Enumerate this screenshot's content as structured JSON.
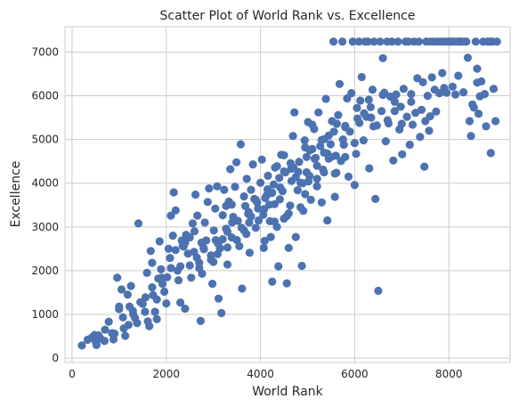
{
  "chart_data": {
    "type": "scatter",
    "title": "Scatter Plot of World Rank vs. Excellence",
    "xlabel": "World Rank",
    "ylabel": "Excellence",
    "xlim": [
      -150,
      9300
    ],
    "ylim": [
      -100,
      7580
    ],
    "xticks": [
      "0",
      "2000",
      "4000",
      "6000",
      "8000"
    ],
    "yticks": [
      "0",
      "1000",
      "2000",
      "3000",
      "4000",
      "5000",
      "6000",
      "7000"
    ],
    "grid": true,
    "legend": "none",
    "marker_color": "#4c72b0",
    "points": [
      [
        210,
        290
      ],
      [
        330,
        420
      ],
      [
        420,
        470
      ],
      [
        480,
        530
      ],
      [
        560,
        520
      ],
      [
        600,
        450
      ],
      [
        520,
        300
      ],
      [
        690,
        390
      ],
      [
        780,
        830
      ],
      [
        900,
        560
      ],
      [
        880,
        430
      ],
      [
        960,
        1840
      ],
      [
        1000,
        1180
      ],
      [
        1050,
        1570
      ],
      [
        1080,
        930
      ],
      [
        1100,
        680
      ],
      [
        1130,
        510
      ],
      [
        1180,
        1450
      ],
      [
        1220,
        1180
      ],
      [
        1250,
        1650
      ],
      [
        1290,
        1080
      ],
      [
        1340,
        910
      ],
      [
        1380,
        800
      ],
      [
        1410,
        3080
      ],
      [
        1450,
        1280
      ],
      [
        1500,
        1240
      ],
      [
        1560,
        1390
      ],
      [
        1590,
        1950
      ],
      [
        1610,
        840
      ],
      [
        1640,
        730
      ],
      [
        1670,
        2450
      ],
      [
        1700,
        2180
      ],
      [
        1720,
        1440
      ],
      [
        1760,
        1060
      ],
      [
        1800,
        890
      ],
      [
        1830,
        1820
      ],
      [
        1860,
        2670
      ],
      [
        1890,
        2030
      ],
      [
        1920,
        1700
      ],
      [
        1960,
        1520
      ],
      [
        2000,
        1250
      ],
      [
        2020,
        1850
      ],
      [
        2050,
        2500
      ],
      [
        2080,
        2290
      ],
      [
        2100,
        3260
      ],
      [
        2140,
        2800
      ],
      [
        2160,
        3790
      ],
      [
        2200,
        3380
      ],
      [
        2240,
        2000
      ],
      [
        2260,
        1780
      ],
      [
        2300,
        1270
      ],
      [
        2330,
        2690
      ],
      [
        2370,
        2550
      ],
      [
        2400,
        1130
      ],
      [
        2420,
        2820
      ],
      [
        2460,
        2390
      ],
      [
        2500,
        2120
      ],
      [
        2530,
        1840
      ],
      [
        2560,
        3080
      ],
      [
        2590,
        2430
      ],
      [
        2620,
        3740
      ],
      [
        2660,
        3260
      ],
      [
        2700,
        2060
      ],
      [
        2730,
        850
      ],
      [
        2760,
        1930
      ],
      [
        2790,
        2520
      ],
      [
        2820,
        3100
      ],
      [
        2850,
        2690
      ],
      [
        2880,
        3570
      ],
      [
        2910,
        3880
      ],
      [
        2950,
        2250
      ],
      [
        2980,
        1700
      ],
      [
        3010,
        2920
      ],
      [
        3040,
        3420
      ],
      [
        3080,
        3930
      ],
      [
        3110,
        1360
      ],
      [
        3140,
        2510
      ],
      [
        3170,
        1030
      ],
      [
        3200,
        3270
      ],
      [
        3230,
        3850
      ],
      [
        3270,
        2960
      ],
      [
        3300,
        2140
      ],
      [
        3330,
        3580
      ],
      [
        3360,
        4320
      ],
      [
        3390,
        2760
      ],
      [
        3420,
        3230
      ],
      [
        3460,
        3920
      ],
      [
        3490,
        4480
      ],
      [
        3520,
        3140
      ],
      [
        3550,
        2560
      ],
      [
        3580,
        4890
      ],
      [
        3610,
        1590
      ],
      [
        3650,
        2920
      ],
      [
        3680,
        3480
      ],
      [
        3710,
        4100
      ],
      [
        3740,
        3300
      ],
      [
        3770,
        2410
      ],
      [
        3800,
        3850
      ],
      [
        3840,
        4430
      ],
      [
        3870,
        3640
      ],
      [
        3900,
        2980
      ],
      [
        3930,
        3560
      ],
      [
        3960,
        3150
      ],
      [
        4000,
        4010
      ],
      [
        4030,
        4540
      ],
      [
        4060,
        3280
      ],
      [
        4090,
        2680
      ],
      [
        4130,
        3720
      ],
      [
        4160,
        4170
      ],
      [
        4190,
        3510
      ],
      [
        4220,
        2770
      ],
      [
        4250,
        1750
      ],
      [
        4280,
        3970
      ],
      [
        4310,
        4360
      ],
      [
        4350,
        3000
      ],
      [
        4380,
        2100
      ],
      [
        4410,
        3630
      ],
      [
        4440,
        4650
      ],
      [
        4470,
        3820
      ],
      [
        4500,
        3190
      ],
      [
        4530,
        4250
      ],
      [
        4560,
        1710
      ],
      [
        4600,
        2520
      ],
      [
        4630,
        3490
      ],
      [
        4660,
        4050
      ],
      [
        4690,
        5080
      ],
      [
        4720,
        5620
      ],
      [
        4750,
        2770
      ],
      [
        4790,
        3840
      ],
      [
        4820,
        4490
      ],
      [
        4850,
        4010
      ],
      [
        4880,
        2110
      ],
      [
        4910,
        3370
      ],
      [
        4940,
        4980
      ],
      [
        4980,
        4250
      ],
      [
        5010,
        5400
      ],
      [
        5040,
        4170
      ],
      [
        5070,
        3620
      ],
      [
        5100,
        4780
      ],
      [
        5140,
        5240
      ],
      [
        5170,
        4580
      ],
      [
        5200,
        3930
      ],
      [
        5230,
        5620
      ],
      [
        5270,
        4850
      ],
      [
        5300,
        3560
      ],
      [
        5330,
        4310
      ],
      [
        5360,
        5010
      ],
      [
        5390,
        5930
      ],
      [
        5420,
        3150
      ],
      [
        5450,
        4560
      ],
      [
        5490,
        4890
      ],
      [
        5520,
        5420
      ],
      [
        5550,
        7240
      ],
      [
        5580,
        3690
      ],
      [
        5610,
        4240
      ],
      [
        5650,
        5560
      ],
      [
        5680,
        6270
      ],
      [
        5710,
        4510
      ],
      [
        5740,
        7240
      ],
      [
        5770,
        4880
      ],
      [
        5800,
        5310
      ],
      [
        5840,
        5940
      ],
      [
        5870,
        4150
      ],
      [
        5900,
        5180
      ],
      [
        5930,
        6060
      ],
      [
        5960,
        7240
      ],
      [
        6000,
        3960
      ],
      [
        6030,
        4670
      ],
      [
        6060,
        5480
      ],
      [
        6090,
        7240
      ],
      [
        6120,
        5890
      ],
      [
        6150,
        6430
      ],
      [
        6190,
        4980
      ],
      [
        6220,
        7240
      ],
      [
        6250,
        5520
      ],
      [
        6280,
        7240
      ],
      [
        6310,
        4340
      ],
      [
        6340,
        5740
      ],
      [
        6380,
        6140
      ],
      [
        6410,
        7240
      ],
      [
        6440,
        3640
      ],
      [
        6470,
        5320
      ],
      [
        6500,
        1540
      ],
      [
        6540,
        7240
      ],
      [
        6570,
        5650
      ],
      [
        6600,
        6860
      ],
      [
        6630,
        6070
      ],
      [
        6660,
        4960
      ],
      [
        6690,
        7240
      ],
      [
        6720,
        5370
      ],
      [
        6760,
        5980
      ],
      [
        6790,
        7240
      ],
      [
        6820,
        4520
      ],
      [
        6850,
        5650
      ],
      [
        6880,
        6030
      ],
      [
        6920,
        7240
      ],
      [
        6950,
        5230
      ],
      [
        6980,
        5750
      ],
      [
        7010,
        4660
      ],
      [
        7040,
        6160
      ],
      [
        7080,
        7240
      ],
      [
        7110,
        5520
      ],
      [
        7140,
        7240
      ],
      [
        7170,
        4880
      ],
      [
        7200,
        6040
      ],
      [
        7230,
        5340
      ],
      [
        7260,
        7240
      ],
      [
        7290,
        5610
      ],
      [
        7330,
        6400
      ],
      [
        7360,
        7240
      ],
      [
        7390,
        5060
      ],
      [
        7420,
        5680
      ],
      [
        7450,
        6310
      ],
      [
        7480,
        4380
      ],
      [
        7520,
        7240
      ],
      [
        7550,
        6000
      ],
      [
        7580,
        5200
      ],
      [
        7610,
        7240
      ],
      [
        7640,
        6420
      ],
      [
        7670,
        7240
      ],
      [
        7700,
        6140
      ],
      [
        7730,
        5640
      ],
      [
        7760,
        7240
      ],
      [
        7800,
        6060
      ],
      [
        7830,
        7240
      ],
      [
        7860,
        6520
      ],
      [
        7890,
        7240
      ],
      [
        7920,
        7240
      ],
      [
        7950,
        6070
      ],
      [
        7990,
        7240
      ],
      [
        8020,
        7240
      ],
      [
        8050,
        7240
      ],
      [
        8080,
        6210
      ],
      [
        8110,
        7240
      ],
      [
        8140,
        6030
      ],
      [
        8170,
        7240
      ],
      [
        8210,
        7240
      ],
      [
        8240,
        7240
      ],
      [
        8270,
        7240
      ],
      [
        8310,
        6080
      ],
      [
        8340,
        7240
      ],
      [
        8370,
        7240
      ],
      [
        8400,
        6870
      ],
      [
        8440,
        5420
      ],
      [
        8470,
        5080
      ],
      [
        8500,
        5800
      ],
      [
        8530,
        5730
      ],
      [
        8570,
        7240
      ],
      [
        8600,
        6620
      ],
      [
        8630,
        5590
      ],
      [
        8660,
        5990
      ],
      [
        8690,
        6330
      ],
      [
        8730,
        7240
      ],
      [
        8760,
        6040
      ],
      [
        8790,
        5300
      ],
      [
        8820,
        7240
      ],
      [
        8860,
        7240
      ],
      [
        8890,
        4690
      ],
      [
        8920,
        7240
      ],
      [
        8950,
        6160
      ],
      [
        8990,
        5420
      ],
      [
        9020,
        7240
      ],
      [
        2500,
        2760
      ],
      [
        3390,
        3510
      ],
      [
        4500,
        4270
      ],
      [
        4070,
        2520
      ],
      [
        3750,
        3340
      ],
      [
        5200,
        4400
      ],
      [
        4300,
        3120
      ],
      [
        3600,
        2980
      ],
      [
        4980,
        4600
      ],
      [
        5560,
        5180
      ],
      [
        3200,
        2720
      ],
      [
        2350,
        2570
      ],
      [
        4950,
        4820
      ],
      [
        4500,
        4640
      ],
      [
        4150,
        3860
      ],
      [
        3000,
        2200
      ],
      [
        2400,
        2640
      ],
      [
        5800,
        4600
      ],
      [
        5020,
        4040
      ],
      [
        3900,
        3620
      ],
      [
        4950,
        3750
      ],
      [
        5620,
        5360
      ],
      [
        4560,
        3250
      ],
      [
        3270,
        3480
      ],
      [
        3760,
        3100
      ],
      [
        4700,
        4360
      ],
      [
        5200,
        4100
      ],
      [
        6100,
        5380
      ],
      [
        5500,
        4600
      ],
      [
        4850,
        3450
      ],
      [
        3090,
        2380
      ],
      [
        2800,
        2490
      ],
      [
        5350,
        4700
      ],
      [
        3650,
        3700
      ],
      [
        4080,
        3410
      ],
      [
        2200,
        2470
      ],
      [
        4420,
        3900
      ],
      [
        5420,
        4680
      ],
      [
        4250,
        3780
      ],
      [
        3050,
        2700
      ],
      [
        3500,
        2700
      ],
      [
        4640,
        4460
      ],
      [
        5580,
        4220
      ],
      [
        2950,
        2350
      ],
      [
        4800,
        4260
      ],
      [
        6000,
        4920
      ],
      [
        5150,
        4560
      ],
      [
        4350,
        4390
      ],
      [
        3300,
        2890
      ],
      [
        4600,
        3310
      ],
      [
        5100,
        5340
      ],
      [
        2650,
        2300
      ],
      [
        3950,
        3420
      ],
      [
        4900,
        4000
      ],
      [
        6200,
        5600
      ],
      [
        5600,
        4630
      ],
      [
        4100,
        3660
      ],
      [
        6400,
        5300
      ],
      [
        6700,
        5440
      ],
      [
        7000,
        5360
      ],
      [
        5300,
        4990
      ],
      [
        4400,
        4120
      ],
      [
        3400,
        3100
      ],
      [
        2600,
        2900
      ],
      [
        4750,
        4140
      ],
      [
        5800,
        5280
      ],
      [
        6600,
        6020
      ],
      [
        7200,
        5860
      ],
      [
        7500,
        5420
      ],
      [
        1800,
        1340
      ],
      [
        1550,
        1060
      ],
      [
        1200,
        760
      ],
      [
        850,
        570
      ],
      [
        1900,
        1840
      ],
      [
        2100,
        2060
      ],
      [
        2700,
        2180
      ],
      [
        3100,
        2620
      ],
      [
        3300,
        2530
      ],
      [
        3700,
        2840
      ],
      [
        4200,
        3130
      ],
      [
        4650,
        4330
      ],
      [
        5050,
        4750
      ],
      [
        5450,
        5090
      ],
      [
        6050,
        5720
      ],
      [
        6300,
        5910
      ],
      [
        7600,
        5530
      ],
      [
        7900,
        6180
      ],
      [
        8200,
        6460
      ],
      [
        8600,
        6300
      ],
      [
        8900,
        7240
      ],
      [
        500,
        380
      ],
      [
        700,
        650
      ],
      [
        1000,
        1120
      ],
      [
        1300,
        1000
      ],
      [
        1700,
        1620
      ],
      [
        2300,
        2100
      ],
      [
        2750,
        2640
      ],
      [
        3800,
        3240
      ],
      [
        4300,
        3520
      ],
      [
        5350,
        4250
      ],
      [
        5750,
        5000
      ],
      [
        6350,
        5500
      ],
      [
        6850,
        5860
      ]
    ]
  }
}
